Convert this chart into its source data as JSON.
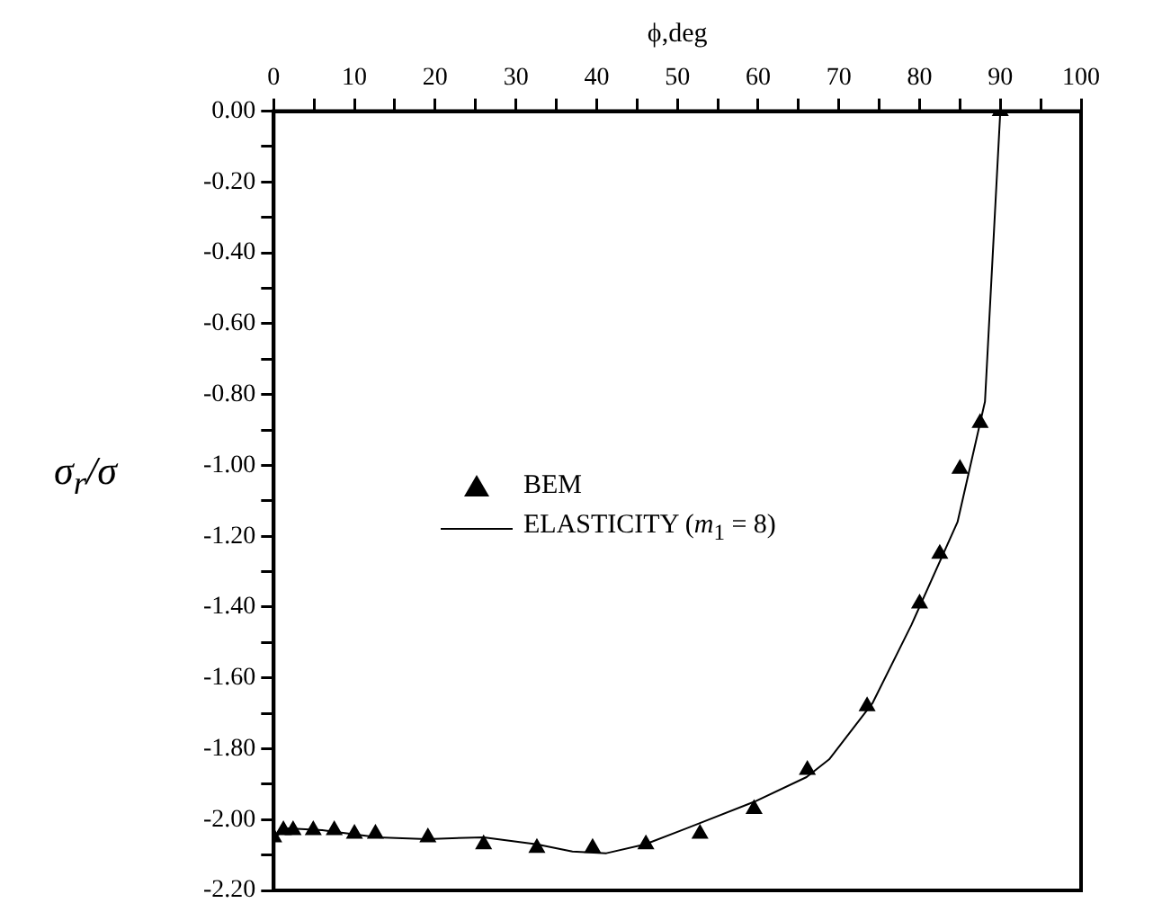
{
  "chart_data": {
    "type": "line",
    "xlabel": "ϕ,deg",
    "ylabel": "σ$_{r}$/σ",
    "xlim": [
      0,
      100
    ],
    "ylim": [
      -2.2,
      0
    ],
    "xticks": [
      0,
      {
        "value": 5,
        "label": null
      },
      10,
      {
        "value": 15,
        "label": null
      },
      20,
      {
        "value": 25,
        "label": null
      },
      30,
      {
        "value": 35,
        "label": null
      },
      40,
      {
        "value": 45,
        "label": null
      },
      50,
      {
        "value": 55,
        "label": null
      },
      60,
      {
        "value": 65,
        "label": null
      },
      70,
      {
        "value": 75,
        "label": null
      },
      80,
      {
        "value": 85,
        "label": null
      },
      90,
      {
        "value": 95,
        "label": null
      },
      100
    ],
    "yticks": [
      {
        "value": 0,
        "label": "0.00"
      },
      {
        "value": -0.1,
        "label": null
      },
      {
        "value": -0.2,
        "label": "-0.20"
      },
      {
        "value": -0.3,
        "label": null
      },
      {
        "value": -0.4,
        "label": "-0.40"
      },
      {
        "value": -0.5,
        "label": null
      },
      {
        "value": -0.6,
        "label": "-0.60"
      },
      {
        "value": -0.7,
        "label": null
      },
      {
        "value": -0.8,
        "label": "-0.80"
      },
      {
        "value": -0.9,
        "label": null
      },
      {
        "value": -1,
        "label": "-1.00"
      },
      {
        "value": -1.1,
        "label": null
      },
      {
        "value": -1.2,
        "label": "-1.20"
      },
      {
        "value": -1.3,
        "label": null
      },
      {
        "value": -1.4,
        "label": "-1.40"
      },
      {
        "value": -1.5,
        "label": null
      },
      {
        "value": -1.6,
        "label": "-1.60"
      },
      {
        "value": -1.7,
        "label": null
      },
      {
        "value": -1.8,
        "label": "-1.80"
      },
      {
        "value": -1.9,
        "label": null
      },
      {
        "value": -2,
        "label": "-2.00"
      },
      {
        "value": -2.1,
        "label": null
      },
      {
        "value": -2.2,
        "label": "-2.20"
      }
    ],
    "grid": false,
    "legend": "left",
    "series": [
      {
        "name": "BEM",
        "type": "scatter",
        "marker": "triangle",
        "color": "#000000",
        "x": [
          0,
          1.2,
          2.4,
          4.9,
          7.5,
          10,
          12.6,
          19.1,
          26,
          32.6,
          39.5,
          46.1,
          52.8,
          59.5,
          66.1,
          73.5,
          80,
          82.5,
          85,
          87.5,
          90
        ],
        "values": [
          -2.05,
          -2.03,
          -2.03,
          -2.03,
          -2.03,
          -2.04,
          -2.04,
          -2.05,
          -2.07,
          -2.08,
          -2.08,
          -2.07,
          -2.04,
          -1.97,
          -1.86,
          -1.68,
          -1.39,
          -1.25,
          -1.01,
          -0.88,
          0
        ]
      },
      {
        "name": "ELASTICITY  (m$_{1}$ = 8)",
        "type": "line",
        "marker": "none",
        "line_style": "solid",
        "color": "#000000",
        "x": [
          0,
          1.8,
          6,
          12.9,
          19,
          26,
          32.6,
          37,
          41.2,
          46,
          52.8,
          59.5,
          66,
          68.8,
          74.2,
          79,
          84.7,
          88.1,
          90
        ],
        "values": [
          -2.05,
          -2.025,
          -2.03,
          -2.05,
          -2.055,
          -2.05,
          -2.07,
          -2.09,
          -2.095,
          -2.07,
          -2.01,
          -1.95,
          -1.88,
          -1.83,
          -1.67,
          -1.45,
          -1.16,
          -0.82,
          0
        ]
      }
    ]
  }
}
